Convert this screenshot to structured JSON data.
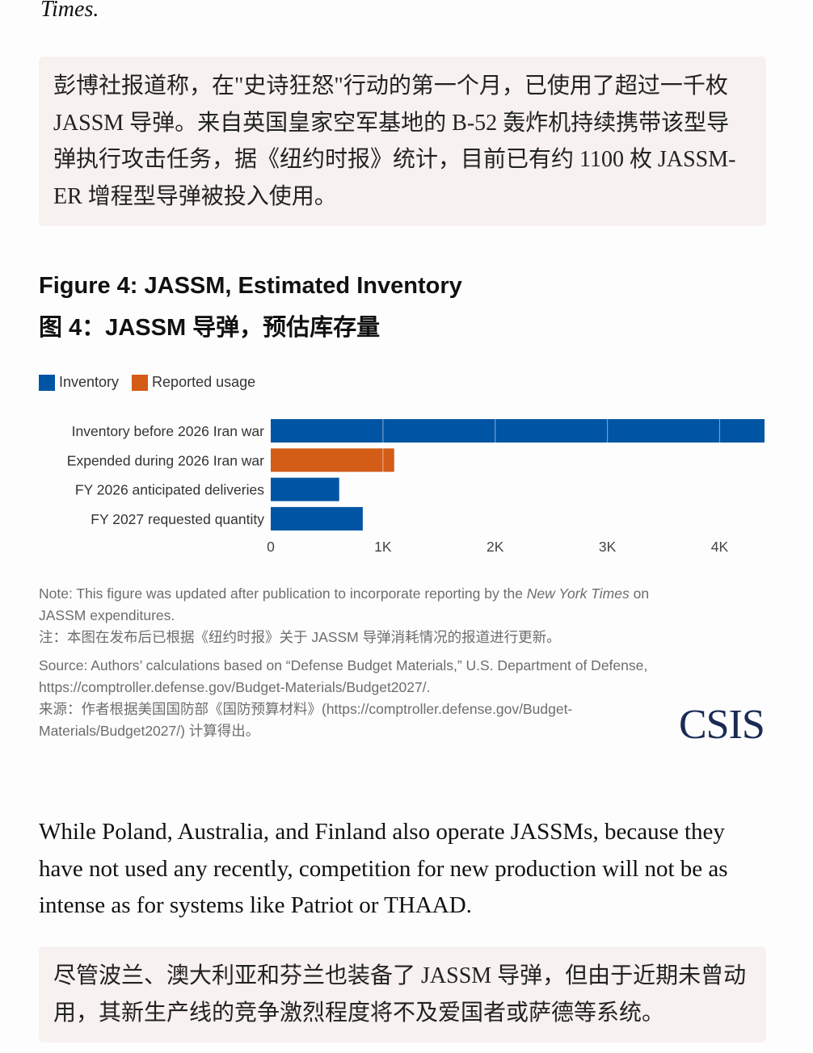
{
  "prev_text_tail": "Times.",
  "callout1": "彭博社报道称，在\"史诗狂怒\"行动的第一个月，已使用了超过一千枚 JASSM 导弹。来自英国皇家空军基地的 B-52 轰炸机持续携带该型导弹执行攻击任务，据《纽约时报》统计，目前已有约 1100 枚 JASSM-ER 增程型导弹被投入使用。",
  "figure": {
    "title_en": "Figure 4: JASSM, Estimated Inventory",
    "title_zh": "图 4：JASSM 导弹，预估库存量"
  },
  "colors": {
    "inventory": "#0054a4",
    "usage": "#d35c17"
  },
  "chart_data": {
    "type": "bar",
    "orientation": "horizontal",
    "legend": [
      {
        "name": "Inventory",
        "color": "#0054a4"
      },
      {
        "name": "Reported usage",
        "color": "#d35c17"
      }
    ],
    "legend_placement": "top-left",
    "categories": [
      "Inventory before 2026 Iran war",
      "Expended during 2026 Iran war",
      "FY 2026 anticipated deliveries",
      "FY 2027 requested quantity"
    ],
    "values": [
      4400,
      1100,
      610,
      820
    ],
    "series_of_bar": [
      "Inventory",
      "Reported usage",
      "Inventory",
      "Inventory"
    ],
    "xlim": [
      0,
      4400
    ],
    "ticks": [
      0,
      1000,
      2000,
      3000,
      4000
    ],
    "tick_labels": [
      "0",
      "1K",
      "2K",
      "3K",
      "4K"
    ],
    "grid": true
  },
  "notes": {
    "note_en_a": "Note: This figure was updated after publication to incorporate reporting by the ",
    "note_en_italic": "New York Times",
    "note_en_b": " on JASSM expenditures.",
    "note_zh": "注：本图在发布后已根据《纽约时报》关于 JASSM 导弹消耗情况的报道进行更新。",
    "source_en": "Source: Authors’ calculations based on “Defense Budget Materials,” U.S. Department of Defense, https://comptroller.defense.gov/Budget-Materials/Budget2027/.",
    "source_zh": "来源：作者根据美国国防部《国防预算材料》(https://comptroller.defense.gov/Budget-Materials/Budget2027/) 计算得出。"
  },
  "logo": "CSIS",
  "paragraph": "While Poland, Australia, and Finland also operate JASSMs, because they have not used any recently, competition for new production will not be as intense as for systems like Patriot or THAAD.",
  "callout2": "尽管波兰、澳大利亚和芬兰也装备了 JASSM 导弹，但由于近期未曾动用，其新生产线的竞争激烈程度将不及爱国者或萨德等系统。"
}
